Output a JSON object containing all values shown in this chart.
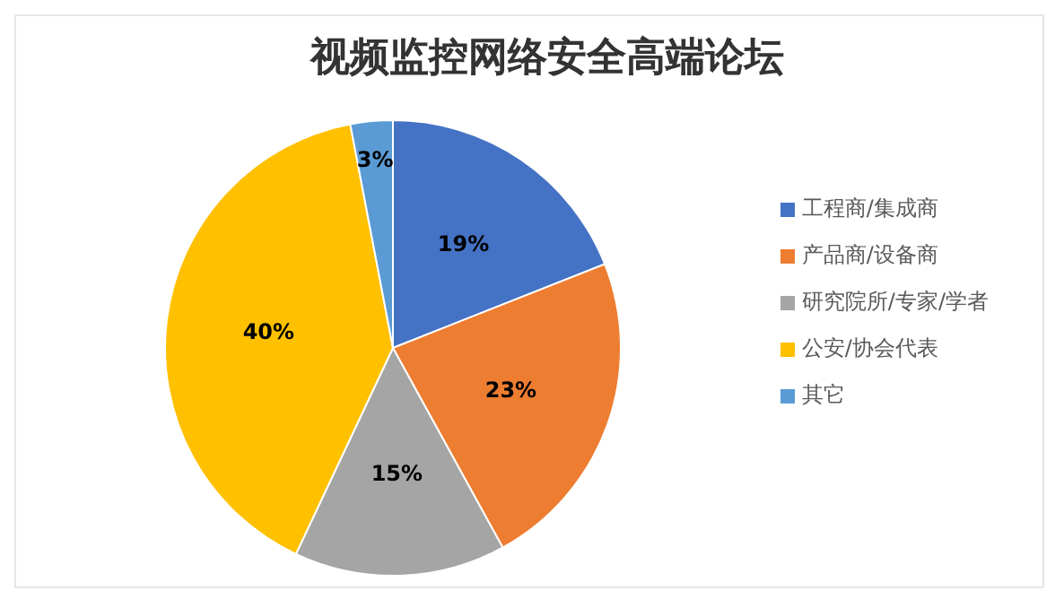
{
  "chart_data": {
    "type": "pie",
    "title": "视频监控网络安全高端论坛",
    "categories": [
      "工程商/集成商",
      "产品商/设备商",
      "研究院所/专家/学者",
      "公安/协会代表",
      "其它"
    ],
    "values": [
      19,
      23,
      15,
      40,
      3
    ],
    "colors": [
      "#4472c4",
      "#ed7d31",
      "#a5a5a5",
      "#ffc000",
      "#5b9bd5"
    ],
    "value_labels": [
      "19%",
      "23%",
      "15%",
      "40%",
      "3%"
    ],
    "legend": "right"
  }
}
